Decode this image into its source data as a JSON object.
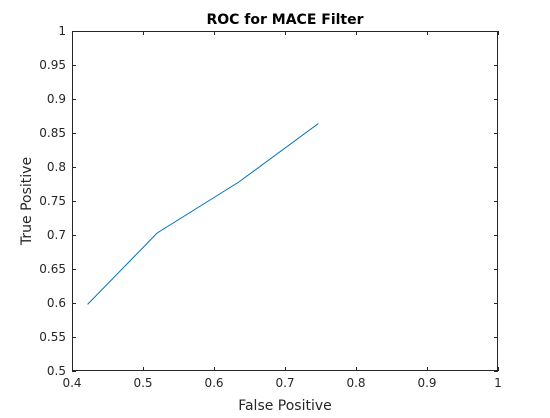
{
  "chart_data": {
    "type": "line",
    "title": "ROC for MACE Filter",
    "xlabel": "False Positive",
    "ylabel": "True Positive",
    "xlim": [
      0.4,
      1
    ],
    "ylim": [
      0.5,
      1
    ],
    "x_ticks": [
      0.4,
      0.5,
      0.6,
      0.7,
      0.8,
      0.9,
      1
    ],
    "x_tick_labels": [
      "0.4",
      "0.5",
      "0.6",
      "0.7",
      "0.8",
      "0.9",
      "1"
    ],
    "y_ticks": [
      0.5,
      0.55,
      0.6,
      0.65,
      0.7,
      0.75,
      0.8,
      0.85,
      0.9,
      0.95,
      1
    ],
    "y_tick_labels": [
      "0.5",
      "0.55",
      "0.6",
      "0.65",
      "0.7",
      "0.75",
      "0.8",
      "0.85",
      "0.9",
      "0.95",
      "1"
    ],
    "grid": false,
    "series": [
      {
        "color": "#0072bd",
        "x": [
          0.422,
          0.52,
          0.635,
          0.747
        ],
        "y": [
          0.598,
          0.703,
          0.778,
          0.864
        ]
      }
    ]
  }
}
